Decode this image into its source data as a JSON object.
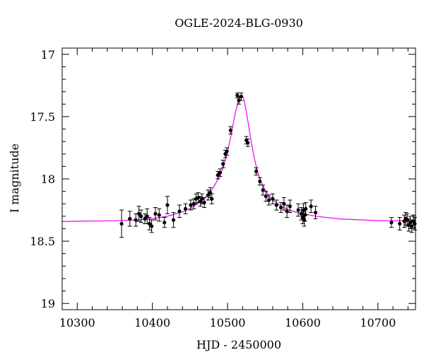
{
  "chart_data": {
    "type": "scatter",
    "title": "OGLE-2024-BLG-0930",
    "xlabel": "HJD - 2450000",
    "ylabel": "I magnitude",
    "xlim": [
      10280,
      10750
    ],
    "ylim": [
      19.05,
      16.95
    ],
    "y_inverted": true,
    "x_ticks": [
      10300,
      10400,
      10500,
      10600,
      10700
    ],
    "y_ticks": [
      17,
      17.5,
      18,
      18.5,
      19
    ],
    "y_tick_labels": [
      "17",
      "17.5",
      "18",
      "18.5",
      "19"
    ],
    "grid": false,
    "colors": {
      "points": "#000000",
      "model": "#ee00ee"
    },
    "model": {
      "name": "",
      "t0": 10518.5,
      "baseline_mag": 18.345,
      "x": [
        10280,
        10300,
        10350,
        10380,
        10400,
        10420,
        10440,
        10450,
        10460,
        10470,
        10480,
        10490,
        10495,
        10500,
        10505,
        10510,
        10514,
        10516,
        10518,
        10519,
        10520,
        10522,
        10524,
        10527,
        10530,
        10535,
        10540,
        10545,
        10550,
        10555,
        10560,
        10570,
        10580,
        10590,
        10600,
        10620,
        10650,
        10700,
        10750
      ],
      "y": [
        18.342,
        18.34,
        18.336,
        18.33,
        18.32,
        18.3,
        18.265,
        18.238,
        18.2,
        18.15,
        18.08,
        17.975,
        17.895,
        17.78,
        17.64,
        17.48,
        17.38,
        17.345,
        17.33,
        17.328,
        17.333,
        17.37,
        17.43,
        17.535,
        17.65,
        17.82,
        17.945,
        18.03,
        18.09,
        18.135,
        18.17,
        18.215,
        18.245,
        18.265,
        18.28,
        18.302,
        18.322,
        18.335,
        18.338
      ]
    },
    "series": [
      {
        "x": [
          10359,
          10370,
          10378,
          10382,
          10385,
          10390,
          10393,
          10396,
          10399,
          10404,
          10409,
          10416,
          10420,
          10428,
          10436,
          10444,
          10451,
          10455,
          10458,
          10461,
          10464,
          10466,
          10469,
          10474,
          10477,
          10479,
          10487,
          10490,
          10494,
          10497,
          10499,
          10504,
          10513,
          10515,
          10518,
          10525,
          10527,
          10538,
          10543,
          10547,
          10551,
          10555,
          10560,
          10565,
          10571,
          10575,
          10579,
          10583,
          10594,
          10598,
          10600,
          10601,
          10602,
          10603,
          10604,
          10611,
          10617,
          10718,
          10729,
          10735,
          10737,
          10739,
          10741,
          10743,
          10745,
          10747,
          10749
        ],
        "y": [
          18.36,
          18.32,
          18.33,
          18.28,
          18.3,
          18.32,
          18.3,
          18.36,
          18.38,
          18.28,
          18.29,
          18.35,
          18.21,
          18.33,
          18.26,
          18.24,
          18.21,
          18.2,
          18.16,
          18.15,
          18.18,
          18.16,
          18.19,
          18.13,
          18.11,
          18.16,
          17.97,
          17.95,
          17.88,
          17.8,
          17.78,
          17.61,
          17.33,
          17.37,
          17.34,
          17.69,
          17.71,
          17.94,
          18.02,
          18.09,
          18.14,
          18.17,
          18.16,
          18.21,
          18.23,
          18.2,
          18.26,
          18.22,
          18.25,
          18.28,
          18.31,
          18.25,
          18.33,
          18.29,
          18.24,
          18.22,
          18.27,
          18.35,
          18.36,
          18.34,
          18.32,
          18.33,
          18.37,
          18.35,
          18.38,
          18.34,
          18.36
        ],
        "err": [
          0.11,
          0.06,
          0.05,
          0.06,
          0.05,
          0.04,
          0.06,
          0.05,
          0.05,
          0.05,
          0.05,
          0.04,
          0.07,
          0.06,
          0.05,
          0.04,
          0.04,
          0.04,
          0.04,
          0.04,
          0.04,
          0.04,
          0.04,
          0.04,
          0.04,
          0.04,
          0.03,
          0.03,
          0.03,
          0.03,
          0.03,
          0.03,
          0.02,
          0.03,
          0.03,
          0.03,
          0.03,
          0.03,
          0.03,
          0.04,
          0.04,
          0.04,
          0.04,
          0.04,
          0.04,
          0.05,
          0.05,
          0.05,
          0.05,
          0.05,
          0.05,
          0.05,
          0.05,
          0.05,
          0.05,
          0.05,
          0.05,
          0.04,
          0.05,
          0.05,
          0.05,
          0.05,
          0.05,
          0.05,
          0.05,
          0.05,
          0.05
        ]
      }
    ]
  }
}
